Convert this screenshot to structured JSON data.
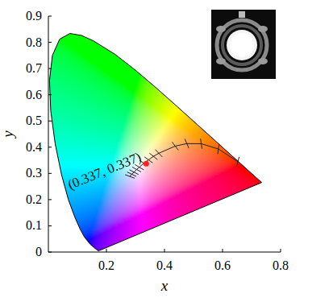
{
  "chart_data": {
    "type": "chromaticity",
    "xlabel": "x",
    "ylabel": "y",
    "xlim": [
      0,
      0.8
    ],
    "ylim": [
      0,
      0.9
    ],
    "xticks": [
      0.2,
      0.4,
      0.6,
      0.8
    ],
    "yticks": [
      0,
      0.1,
      0.2,
      0.3,
      0.4,
      0.5,
      0.6,
      0.7,
      0.8,
      0.9
    ],
    "annotation": "(0.337, 0.337)",
    "series": [
      {
        "type": "area",
        "x": [
          0.1741,
          0.1714,
          0.1644,
          0.1566,
          0.144,
          0.1241,
          0.1096,
          0.0913,
          0.0687,
          0.0454,
          0.0235,
          0.0082,
          0.0039,
          0.0139,
          0.0389,
          0.0743,
          0.1142,
          0.1547,
          0.2296,
          0.3016,
          0.3731,
          0.4441,
          0.5125,
          0.5752,
          0.627,
          0.6915,
          0.719,
          0.7347
        ],
        "values": [
          0.005,
          0.0051,
          0.0109,
          0.0177,
          0.0297,
          0.0578,
          0.0868,
          0.1327,
          0.2007,
          0.295,
          0.4127,
          0.5384,
          0.6548,
          0.7502,
          0.812,
          0.8338,
          0.8262,
          0.8059,
          0.7543,
          0.6923,
          0.6245,
          0.5547,
          0.4866,
          0.4242,
          0.3725,
          0.3083,
          0.2809,
          0.2653
        ],
        "color": "#000000"
      },
      {
        "type": "line",
        "marker": "tick",
        "x": [
          0.2807,
          0.287,
          0.295,
          0.304,
          0.3135,
          0.329,
          0.3451,
          0.362,
          0.3805,
          0.4369,
          0.477,
          0.5267,
          0.5857,
          0.6528
        ],
        "values": [
          0.2884,
          0.297,
          0.3048,
          0.315,
          0.3236,
          0.339,
          0.3516,
          0.365,
          0.3768,
          0.4041,
          0.4137,
          0.4133,
          0.3931,
          0.3444
        ],
        "color": "#222222"
      },
      {
        "type": "scatter",
        "marker": "circle",
        "x": [
          0.337
        ],
        "values": [
          0.337
        ],
        "color": "#ff2020"
      }
    ]
  }
}
